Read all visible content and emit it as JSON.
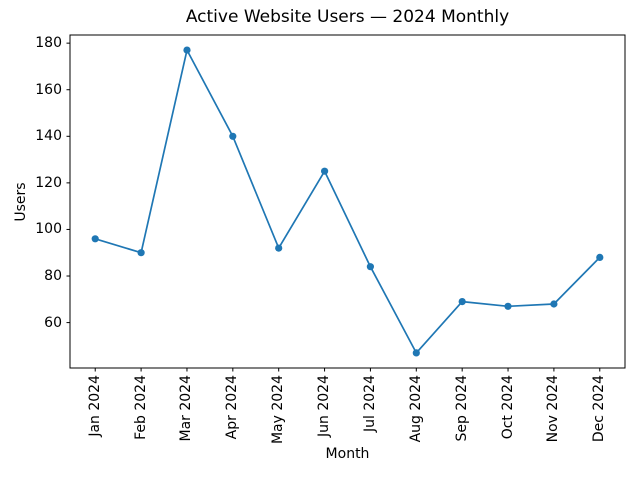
{
  "chart_data": {
    "type": "line",
    "title": "Active Website Users — 2024 Monthly",
    "xlabel": "Month",
    "ylabel": "Users",
    "categories": [
      "Jan 2024",
      "Feb 2024",
      "Mar 2024",
      "Apr 2024",
      "May 2024",
      "Jun 2024",
      "Jul 2024",
      "Aug 2024",
      "Sep 2024",
      "Oct 2024",
      "Nov 2024",
      "Dec 2024"
    ],
    "series": [
      {
        "name": "Users",
        "values": [
          96,
          90,
          177,
          140,
          92,
          125,
          84,
          47,
          69,
          67,
          68,
          88
        ]
      }
    ],
    "yticks": [
      60,
      80,
      100,
      120,
      140,
      160,
      180
    ],
    "ylim": [
      40.5,
      183.5
    ],
    "xtick_rotation": 90,
    "grid": false,
    "legend": "none",
    "line_color": "#1f77b4",
    "marker": "circle",
    "text_color": "#000000",
    "spine_color": "#000000",
    "background_color": "#ffffff"
  }
}
